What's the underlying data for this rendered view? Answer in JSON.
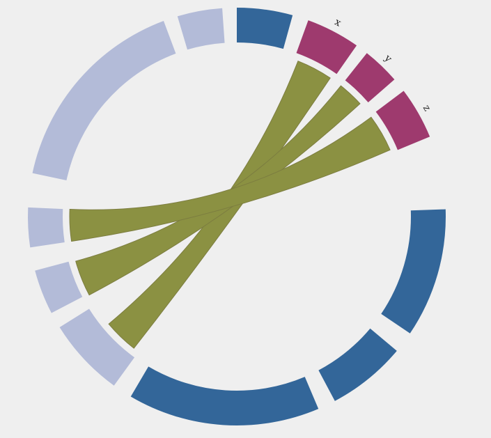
{
  "colors": {
    "background": "#efefef",
    "blue": "#336699",
    "light_blue": "#b3bbd8",
    "magenta": "#9e3a6e",
    "olive": "#8b9142"
  },
  "diagram": {
    "type": "chord",
    "nodes": [
      {
        "id": "blue-top",
        "label": "",
        "color": "blue"
      },
      {
        "id": "x",
        "label": "x",
        "color": "magenta"
      },
      {
        "id": "y",
        "label": "y",
        "color": "magenta"
      },
      {
        "id": "z",
        "label": "z",
        "color": "magenta"
      },
      {
        "id": "blue-right",
        "label": "",
        "color": "blue"
      },
      {
        "id": "blue-lower-right",
        "label": "",
        "color": "blue"
      },
      {
        "id": "blue-bottom",
        "label": "",
        "color": "blue"
      },
      {
        "id": "light-1",
        "label": "",
        "color": "light_blue"
      },
      {
        "id": "light-2",
        "label": "",
        "color": "light_blue"
      },
      {
        "id": "light-3",
        "label": "",
        "color": "light_blue"
      },
      {
        "id": "light-4",
        "label": "",
        "color": "light_blue"
      },
      {
        "id": "light-5",
        "label": "",
        "color": "light_blue"
      }
    ],
    "links": [
      {
        "source": "x",
        "target": "light-3"
      },
      {
        "source": "y",
        "target": "light-2"
      },
      {
        "source": "z",
        "target": "light-1"
      }
    ]
  }
}
